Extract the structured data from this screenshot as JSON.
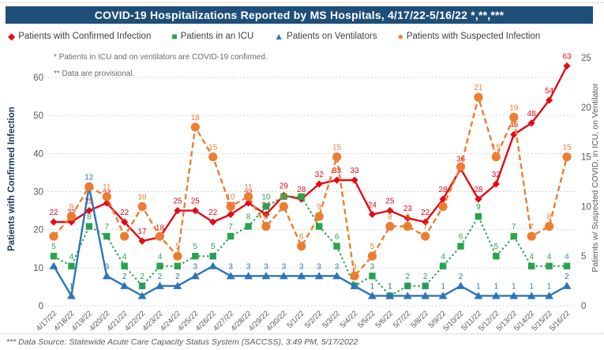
{
  "header": {
    "title": "COVID-19 Hospitalizations Reported by MS Hospitals, 4/17/22-5/16/22 *,**,***"
  },
  "legend": {
    "items": [
      {
        "label": "Patients with Confirmed Infection",
        "marker": "diamond-icon",
        "color": "#e30b17"
      },
      {
        "label": "Patients in an ICU",
        "marker": "square-icon",
        "color": "#28a44e"
      },
      {
        "label": "Patients on Ventilators",
        "marker": "triangle-icon",
        "color": "#2e75b6"
      },
      {
        "label": "Patients with Suspected Infection",
        "marker": "circle-icon",
        "color": "#ed7d31"
      }
    ]
  },
  "notes": {
    "note1": "* Patients in ICU and on ventilators are COVID-19 confirmed.",
    "note2": "** Data are provisional."
  },
  "axes": {
    "left_title": "Patients with Confirmed Infection",
    "right_title": "Patients w/ Suspected COVID, in ICU, on Ventilator",
    "left_ticks": [
      0,
      10,
      20,
      30,
      40,
      50,
      60
    ],
    "right_ticks": [
      0,
      5,
      10,
      15,
      20,
      25
    ],
    "left_max": 60,
    "right_max": 25
  },
  "footer": {
    "text": "*** Data Source: Statewide Acute Care Capacity Status System (SACCSS), 3:49 PM, 5/17/2022"
  },
  "chart_data": {
    "type": "line",
    "title": "COVID-19 Hospitalizations Reported by MS Hospitals, 4/17/22-5/16/22",
    "xlabel": "",
    "ylabel_left": "Patients with Confirmed Infection",
    "ylabel_right": "Patients w/ Suspected COVID, in ICU, on Ventilator",
    "ylim_left": [
      0,
      60
    ],
    "ylim_right": [
      0,
      25
    ],
    "grid": "horizontal-dotted",
    "legend_position": "top",
    "categories": [
      "4/17/22",
      "4/18/22",
      "4/19/22",
      "4/20/22",
      "4/21/22",
      "4/22/22",
      "4/23/22",
      "4/24/22",
      "4/25/22",
      "4/26/22",
      "4/27/22",
      "4/28/22",
      "4/29/22",
      "4/30/22",
      "5/1/22",
      "5/2/22",
      "5/3/22",
      "5/4/22",
      "5/5/22",
      "5/6/22",
      "5/7/22",
      "5/8/22",
      "5/9/22",
      "5/10/22",
      "5/11/22",
      "5/12/22",
      "5/13/22",
      "5/14/22",
      "5/15/22",
      "5/16/22"
    ],
    "series": [
      {
        "name": "Patients with Confirmed Infection",
        "axis": "left",
        "color": "#e30b17",
        "marker": "diamond",
        "line_style": "solid",
        "values": [
          22,
          22,
          25,
          27,
          22,
          17,
          18,
          25,
          25,
          22,
          24,
          27,
          24,
          29,
          28,
          32,
          33,
          33,
          24,
          25,
          23,
          22,
          28,
          36,
          28,
          32,
          45,
          48,
          54,
          63
        ],
        "hidden_labels": []
      },
      {
        "name": "Patients in an ICU",
        "axis": "right",
        "color": "#28a44e",
        "marker": "square",
        "line_style": "dotted",
        "values": [
          5,
          4,
          8,
          7,
          4,
          2,
          4,
          4,
          5,
          5,
          7,
          8,
          10,
          11,
          11,
          8,
          6,
          2,
          3,
          1,
          2,
          2,
          4,
          6,
          9,
          5,
          7,
          4,
          4,
          4
        ],
        "hidden_labels": [
          7,
          13,
          14
        ]
      },
      {
        "name": "Patients on Ventilators",
        "axis": "left-equivalent-of-right",
        "color": "#2e75b6",
        "marker": "triangle",
        "line_style": "solid",
        "values": [
          4,
          1,
          12,
          3,
          2,
          1,
          2,
          2,
          3,
          4,
          3,
          3,
          3,
          3,
          3,
          3,
          3,
          2,
          1,
          1,
          1,
          1,
          1,
          2,
          1,
          1,
          1,
          1,
          1,
          2
        ],
        "hidden_labels": [
          0
        ]
      },
      {
        "name": "Patients with Suspected Infection",
        "axis": "right",
        "color": "#ed7d31",
        "marker": "circle",
        "line_style": "dashed",
        "values": [
          7,
          9,
          12,
          11,
          7,
          10,
          7,
          5,
          18,
          15,
          10,
          11,
          8,
          10,
          6,
          9,
          15,
          3,
          5,
          8,
          8,
          7,
          10,
          14,
          21,
          15,
          19,
          7,
          8,
          15
        ],
        "hidden_labels": [
          0,
          2,
          4,
          6,
          22,
          23
        ]
      }
    ]
  }
}
